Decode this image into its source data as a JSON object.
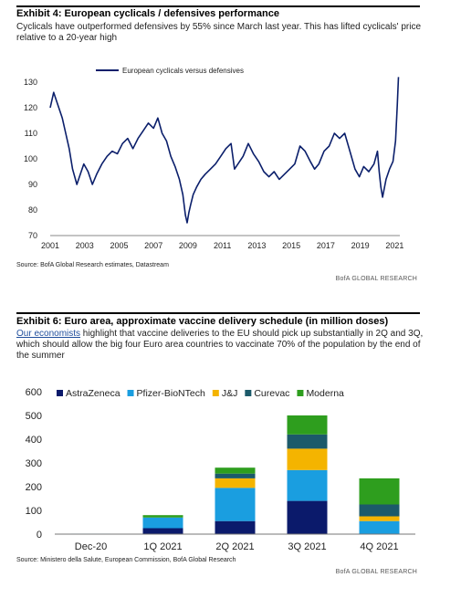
{
  "exhibit4": {
    "title": "Exhibit 4: European cyclicals / defensives performance",
    "subtitle": "Cyclicals have outperformed defensives by 55% since March last year. This has lifted cyclicals' price relative to a 20-year high",
    "source": "Source: BofA Global Research estimates, Datastream",
    "brand": "BofA GLOBAL RESEARCH"
  },
  "exhibit6": {
    "title": "Exhibit 6: Euro area, approximate vaccine delivery schedule (in million doses)",
    "subtitle_link": "Our economists",
    "subtitle_rest": " highlight that vaccine deliveries to the EU should pick up substantially in 2Q and 3Q, which should allow the big four Euro area countries to vaccinate 70% of the population by the end of the summer",
    "source": "Source: Ministero della Salute, European Commission, BofA Global Research",
    "brand": "BofA GLOBAL RESEARCH"
  },
  "chart_data": [
    {
      "type": "line",
      "title": "",
      "xlabel": "",
      "ylabel": "",
      "xlim": [
        2001,
        2021.3
      ],
      "ylim": [
        70,
        130
      ],
      "yticks": [
        70,
        80,
        90,
        100,
        110,
        120,
        130
      ],
      "xticks": [
        "2001",
        "2003",
        "2005",
        "2007",
        "2009",
        "2011",
        "2013",
        "2015",
        "2017",
        "2019",
        "2021"
      ],
      "grid": false,
      "legend": "top-center",
      "series": [
        {
          "name": "European cyclicals versus defensives",
          "color": "#0b1f6b",
          "x": [
            2001.0,
            2001.2,
            2001.45,
            2001.7,
            2001.9,
            2002.1,
            2002.3,
            2002.55,
            2002.75,
            2002.95,
            2003.2,
            2003.45,
            2003.7,
            2004.0,
            2004.3,
            2004.6,
            2004.9,
            2005.2,
            2005.5,
            2005.8,
            2006.1,
            2006.4,
            2006.7,
            2007.0,
            2007.25,
            2007.5,
            2007.75,
            2008.0,
            2008.25,
            2008.5,
            2008.7,
            2008.85,
            2008.95,
            2009.05,
            2009.15,
            2009.3,
            2009.5,
            2009.75,
            2010.0,
            2010.3,
            2010.6,
            2010.9,
            2011.2,
            2011.5,
            2011.7,
            2011.9,
            2012.2,
            2012.5,
            2012.8,
            2013.1,
            2013.4,
            2013.7,
            2014.0,
            2014.3,
            2014.6,
            2014.9,
            2015.2,
            2015.5,
            2015.8,
            2016.1,
            2016.35,
            2016.6,
            2016.9,
            2017.2,
            2017.5,
            2017.8,
            2018.1,
            2018.4,
            2018.7,
            2018.95,
            2019.2,
            2019.5,
            2019.8,
            2020.0,
            2020.1,
            2020.2,
            2020.3,
            2020.5,
            2020.7,
            2020.9,
            2021.05,
            2021.15,
            2021.22
          ],
          "y": [
            120,
            126,
            121,
            116,
            110,
            104,
            96,
            90,
            94,
            98,
            95,
            90,
            94,
            98,
            101,
            103,
            102,
            106,
            108,
            104,
            108,
            111,
            114,
            112,
            116,
            110,
            107,
            101,
            97,
            92,
            86,
            78,
            75,
            79,
            82,
            86,
            89,
            92,
            94,
            96,
            98,
            101,
            104,
            106,
            96,
            98,
            101,
            106,
            102,
            99,
            95,
            93,
            95,
            92,
            94,
            96,
            98,
            105,
            103,
            99,
            96,
            98,
            103,
            105,
            110,
            108,
            110,
            103,
            96,
            93,
            97,
            95,
            98,
            103,
            95,
            89,
            85,
            92,
            96,
            99,
            107,
            121,
            132
          ]
        }
      ]
    },
    {
      "type": "bar",
      "stacked": true,
      "title": "",
      "xlabel": "",
      "ylabel": "",
      "ylim": [
        0,
        600
      ],
      "yticks": [
        0,
        100,
        200,
        300,
        400,
        500,
        600
      ],
      "grid": false,
      "legend": "top",
      "categories": [
        "Dec-20",
        "1Q 2021",
        "2Q 2021",
        "3Q 2021",
        "4Q 2021"
      ],
      "series": [
        {
          "name": "AstraZeneca",
          "color": "#0b1a6b",
          "values": [
            0,
            25,
            55,
            140,
            0
          ]
        },
        {
          "name": "Pfizer-BioNTech",
          "color": "#1a9ee0",
          "values": [
            2,
            45,
            140,
            130,
            55
          ]
        },
        {
          "name": "J&J",
          "color": "#f4b400",
          "values": [
            0,
            0,
            40,
            90,
            20
          ]
        },
        {
          "name": "Curevac",
          "color": "#1c5a6a",
          "values": [
            0,
            0,
            20,
            60,
            50
          ]
        },
        {
          "name": "Moderna",
          "color": "#2e9e1e",
          "values": [
            0,
            10,
            25,
            80,
            110
          ]
        }
      ]
    }
  ]
}
